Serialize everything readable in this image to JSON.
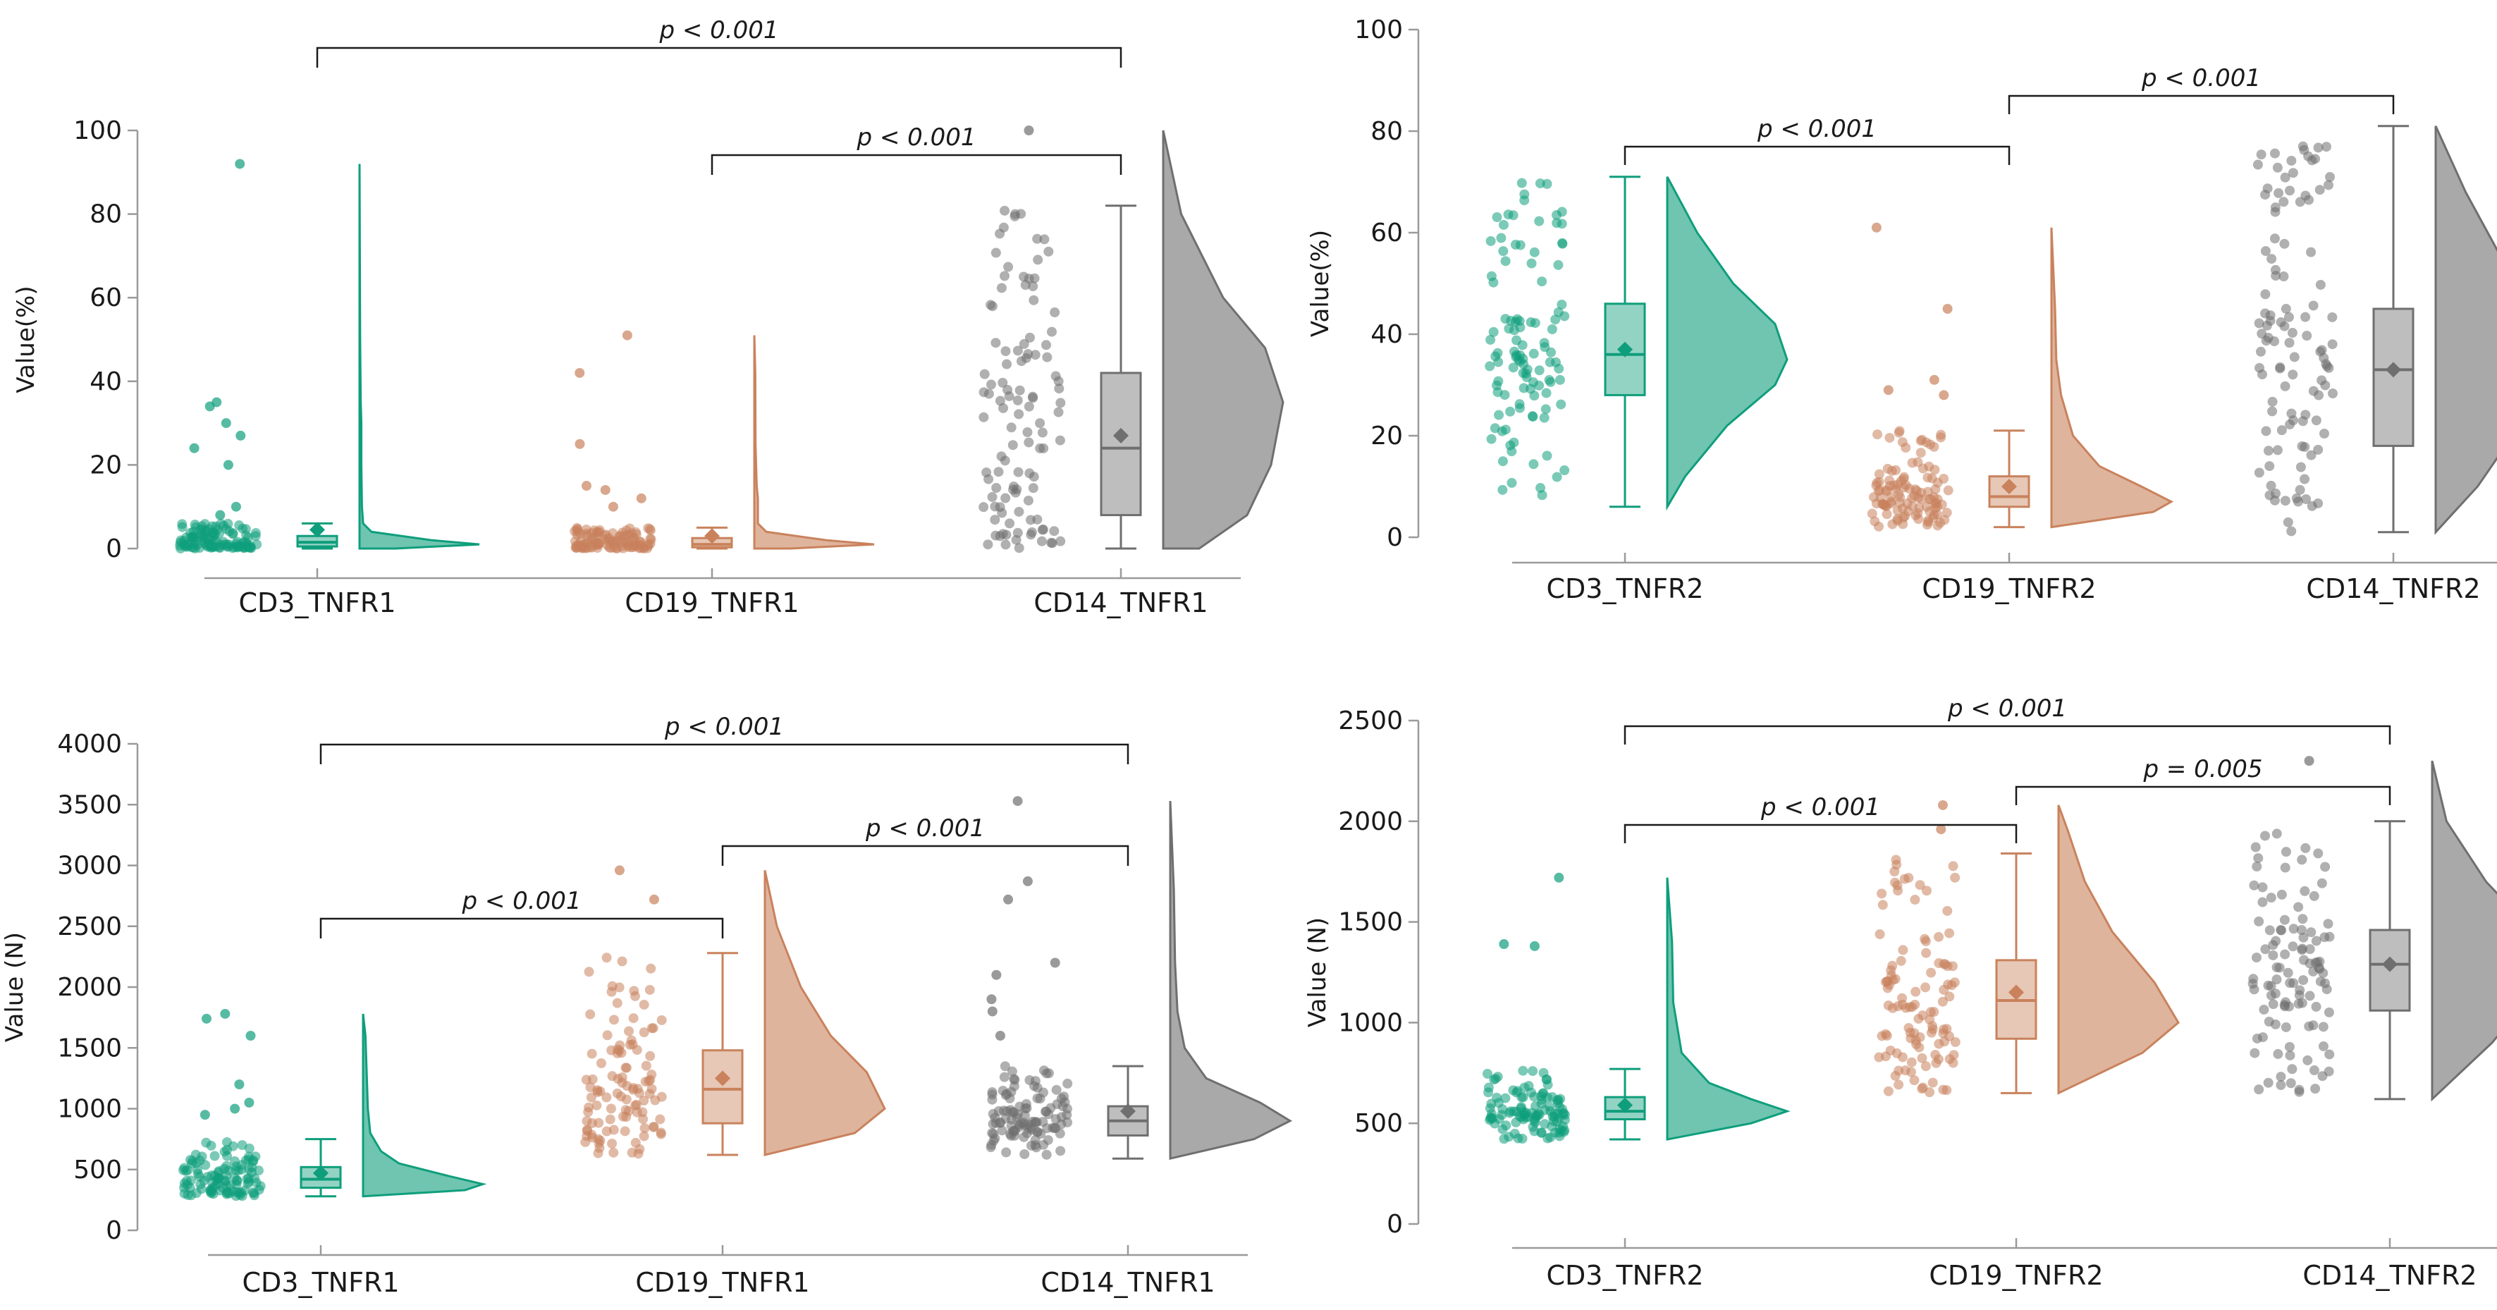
{
  "colors": {
    "CD3": "#0f9e7c",
    "CD19": "#c9825c",
    "CD14": "#6f6f6f"
  },
  "chart_data": [
    {
      "type": "raincloud",
      "ylabel": "Value(%)",
      "ylim": [
        0,
        100
      ],
      "yticks": [
        "0",
        "20",
        "40",
        "60",
        "80",
        "100"
      ],
      "categories": [
        "CD3_TNFR1",
        "CD19_TNFR1",
        "CD14_TNFR1"
      ],
      "groups": [
        {
          "name": "CD3_TNFR1",
          "color": "CD3",
          "min": 0,
          "q1": 0.5,
          "median": 1.5,
          "q3": 3,
          "max": 6,
          "mean": 4.5,
          "outliers": [
            92,
            35,
            34,
            30,
            27,
            24,
            20,
            10,
            8
          ],
          "density": [
            [
              0,
              0.3
            ],
            [
              1,
              1.0
            ],
            [
              2,
              0.6
            ],
            [
              4,
              0.1
            ],
            [
              6,
              0.03
            ],
            [
              10,
              0.02
            ],
            [
              20,
              0.015
            ],
            [
              30,
              0.015
            ],
            [
              35,
              0.01
            ],
            [
              50,
              0.005
            ],
            [
              92,
              0.0
            ]
          ]
        },
        {
          "name": "CD19_TNFR1",
          "color": "CD19",
          "min": 0,
          "q1": 0.3,
          "median": 1,
          "q3": 2.5,
          "max": 5,
          "mean": 3,
          "outliers": [
            51,
            42,
            25,
            15,
            14,
            12,
            10
          ],
          "density": [
            [
              0,
              0.3
            ],
            [
              1,
              1.0
            ],
            [
              2,
              0.6
            ],
            [
              4,
              0.1
            ],
            [
              6,
              0.03
            ],
            [
              12,
              0.03
            ],
            [
              15,
              0.02
            ],
            [
              25,
              0.01
            ],
            [
              42,
              0.008
            ],
            [
              51,
              0.0
            ]
          ]
        },
        {
          "name": "CD14_TNFR1",
          "color": "CD14",
          "min": 0,
          "q1": 8,
          "median": 24,
          "q3": 42,
          "max": 82,
          "mean": 27,
          "outliers": [
            100
          ],
          "density": [
            [
              0,
              0.3
            ],
            [
              8,
              0.7
            ],
            [
              20,
              0.9
            ],
            [
              35,
              1.0
            ],
            [
              48,
              0.85
            ],
            [
              60,
              0.5
            ],
            [
              80,
              0.15
            ],
            [
              100,
              0.0
            ]
          ]
        }
      ],
      "brackets": [
        {
          "from": 0,
          "to": 2,
          "label": "p < 0.001"
        },
        {
          "from": 1,
          "to": 2,
          "label": "p < 0.001"
        }
      ]
    },
    {
      "type": "raincloud",
      "ylabel": "Value(%)",
      "ylim": [
        0,
        100
      ],
      "yticks": [
        "0",
        "20",
        "40",
        "60",
        "80",
        "100"
      ],
      "categories": [
        "CD3_TNFR2",
        "CD19_TNFR2",
        "CD14_TNFR2"
      ],
      "groups": [
        {
          "name": "CD3_TNFR2",
          "color": "CD3",
          "min": 6,
          "q1": 28,
          "median": 36,
          "q3": 46,
          "max": 71,
          "mean": 37,
          "outliers": [],
          "density": [
            [
              6,
              0.0
            ],
            [
              12,
              0.15
            ],
            [
              22,
              0.5
            ],
            [
              30,
              0.9
            ],
            [
              35,
              1.0
            ],
            [
              42,
              0.9
            ],
            [
              50,
              0.55
            ],
            [
              60,
              0.25
            ],
            [
              71,
              0.0
            ]
          ]
        },
        {
          "name": "CD19_TNFR2",
          "color": "CD19",
          "min": 2,
          "q1": 6,
          "median": 8,
          "q3": 12,
          "max": 21,
          "mean": 10,
          "outliers": [
            61,
            45,
            31,
            29,
            28
          ],
          "density": [
            [
              2,
              0.0
            ],
            [
              5,
              0.85
            ],
            [
              7,
              1.0
            ],
            [
              10,
              0.75
            ],
            [
              14,
              0.4
            ],
            [
              20,
              0.18
            ],
            [
              28,
              0.08
            ],
            [
              35,
              0.04
            ],
            [
              45,
              0.03
            ],
            [
              61,
              0.0
            ]
          ]
        },
        {
          "name": "CD14_TNFR2",
          "color": "CD14",
          "min": 1,
          "q1": 18,
          "median": 33,
          "q3": 45,
          "max": 81,
          "mean": 33,
          "outliers": [],
          "density": [
            [
              1,
              0.0
            ],
            [
              10,
              0.35
            ],
            [
              22,
              0.7
            ],
            [
              33,
              1.0
            ],
            [
              45,
              0.9
            ],
            [
              55,
              0.55
            ],
            [
              68,
              0.25
            ],
            [
              81,
              0.0
            ]
          ]
        }
      ],
      "brackets": [
        {
          "from": 0,
          "to": 1,
          "label": "p < 0.001"
        },
        {
          "from": 1,
          "to": 2,
          "label": "p < 0.001"
        }
      ]
    },
    {
      "type": "raincloud",
      "ylabel": "Value (N)",
      "ylim": [
        0,
        4000
      ],
      "yticks": [
        "0",
        "500",
        "1000",
        "1500",
        "2000",
        "2500",
        "3000",
        "3500",
        "4000"
      ],
      "categories": [
        "CD3_TNFR1",
        "CD19_TNFR1",
        "CD14_TNFR1"
      ],
      "groups": [
        {
          "name": "CD3_TNFR1",
          "color": "CD3",
          "min": 280,
          "q1": 350,
          "median": 420,
          "q3": 520,
          "max": 750,
          "mean": 470,
          "outliers": [
            1780,
            1740,
            1600,
            1200,
            1050,
            1000,
            950
          ],
          "density": [
            [
              280,
              0.0
            ],
            [
              330,
              0.85
            ],
            [
              380,
              1.0
            ],
            [
              450,
              0.7
            ],
            [
              550,
              0.3
            ],
            [
              650,
              0.15
            ],
            [
              800,
              0.06
            ],
            [
              1000,
              0.04
            ],
            [
              1300,
              0.03
            ],
            [
              1600,
              0.02
            ],
            [
              1780,
              0.0
            ]
          ]
        },
        {
          "name": "CD19_TNFR1",
          "color": "CD19",
          "min": 620,
          "q1": 880,
          "median": 1160,
          "q3": 1480,
          "max": 2280,
          "mean": 1250,
          "outliers": [
            2960,
            2720
          ],
          "density": [
            [
              620,
              0.0
            ],
            [
              800,
              0.75
            ],
            [
              1000,
              1.0
            ],
            [
              1300,
              0.85
            ],
            [
              1600,
              0.55
            ],
            [
              2000,
              0.3
            ],
            [
              2500,
              0.1
            ],
            [
              2960,
              0.0
            ]
          ]
        },
        {
          "name": "CD14_TNFR1",
          "color": "CD14",
          "min": 590,
          "q1": 780,
          "median": 900,
          "q3": 1020,
          "max": 1350,
          "mean": 980,
          "outliers": [
            3530,
            2870,
            2720,
            2200,
            2100,
            1900,
            1800,
            1600
          ],
          "density": [
            [
              590,
              0.0
            ],
            [
              750,
              0.7
            ],
            [
              900,
              1.0
            ],
            [
              1050,
              0.75
            ],
            [
              1250,
              0.3
            ],
            [
              1500,
              0.12
            ],
            [
              1800,
              0.06
            ],
            [
              2200,
              0.04
            ],
            [
              2800,
              0.03
            ],
            [
              3530,
              0.0
            ]
          ]
        }
      ],
      "brackets": [
        {
          "from": 0,
          "to": 2,
          "label": "p < 0.001"
        },
        {
          "from": 1,
          "to": 2,
          "label": "p < 0.001"
        },
        {
          "from": 0,
          "to": 1,
          "label": "p < 0.001"
        }
      ]
    },
    {
      "type": "raincloud",
      "ylabel": "Value (N)",
      "ylim": [
        0,
        2500
      ],
      "yticks": [
        "0",
        "500",
        "1000",
        "1500",
        "2000",
        "2500"
      ],
      "categories": [
        "CD3_TNFR2",
        "CD19_TNFR2",
        "CD14_TNFR2"
      ],
      "groups": [
        {
          "name": "CD3_TNFR2",
          "color": "CD3",
          "min": 420,
          "q1": 520,
          "median": 560,
          "q3": 630,
          "max": 770,
          "mean": 590,
          "outliers": [
            1720,
            1390,
            1380
          ],
          "density": [
            [
              420,
              0.0
            ],
            [
              500,
              0.7
            ],
            [
              560,
              1.0
            ],
            [
              620,
              0.7
            ],
            [
              700,
              0.35
            ],
            [
              850,
              0.12
            ],
            [
              1100,
              0.05
            ],
            [
              1400,
              0.04
            ],
            [
              1720,
              0.0
            ]
          ]
        },
        {
          "name": "CD19_TNFR2",
          "color": "CD19",
          "min": 650,
          "q1": 920,
          "median": 1110,
          "q3": 1310,
          "max": 1840,
          "mean": 1150,
          "outliers": [
            2080,
            1960
          ],
          "density": [
            [
              650,
              0.0
            ],
            [
              850,
              0.7
            ],
            [
              1000,
              1.0
            ],
            [
              1200,
              0.8
            ],
            [
              1450,
              0.45
            ],
            [
              1700,
              0.22
            ],
            [
              1950,
              0.08
            ],
            [
              2080,
              0.0
            ]
          ]
        },
        {
          "name": "CD14_TNFR2",
          "color": "CD14",
          "min": 620,
          "q1": 1060,
          "median": 1290,
          "q3": 1460,
          "max": 2000,
          "mean": 1290,
          "outliers": [
            2300
          ],
          "density": [
            [
              620,
              0.0
            ],
            [
              900,
              0.5
            ],
            [
              1150,
              0.85
            ],
            [
              1300,
              1.0
            ],
            [
              1450,
              0.85
            ],
            [
              1700,
              0.45
            ],
            [
              2000,
              0.12
            ],
            [
              2300,
              0.0
            ]
          ]
        }
      ],
      "brackets": [
        {
          "from": 0,
          "to": 2,
          "label": "p < 0.001"
        },
        {
          "from": 1,
          "to": 2,
          "label": "p = 0.005"
        },
        {
          "from": 0,
          "to": 1,
          "label": "p < 0.001"
        }
      ]
    }
  ]
}
